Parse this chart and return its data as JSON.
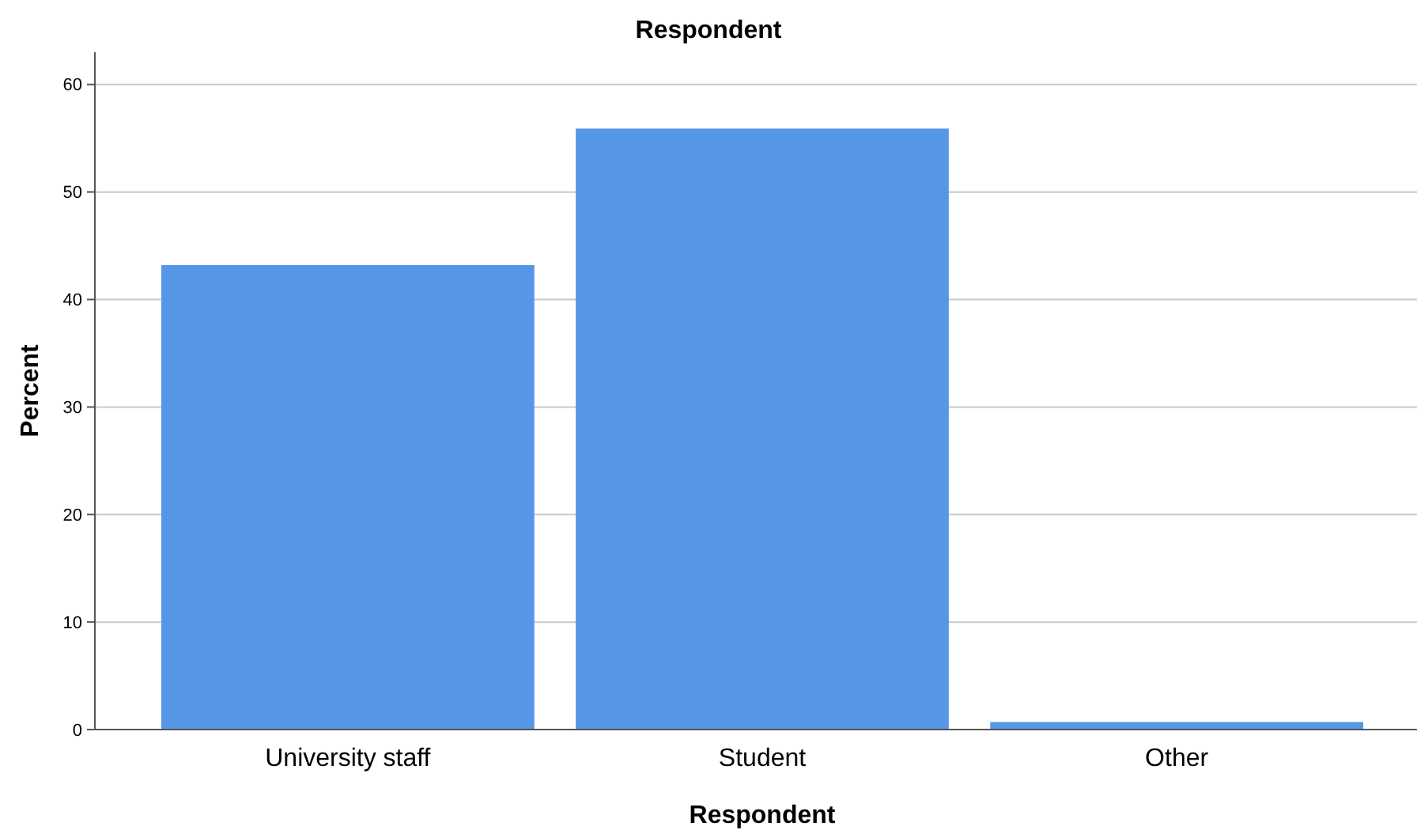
{
  "chart_data": {
    "type": "bar",
    "title": "Respondent",
    "xlabel": "Respondent",
    "ylabel": "Percent",
    "categories": [
      "University staff",
      "Student",
      "Other"
    ],
    "values": [
      43.2,
      55.9,
      0.7
    ],
    "color": "#5596e6",
    "ylim": [
      0,
      63
    ],
    "yticks": [
      0,
      10,
      20,
      30,
      40,
      50,
      60
    ],
    "grid": "y"
  }
}
